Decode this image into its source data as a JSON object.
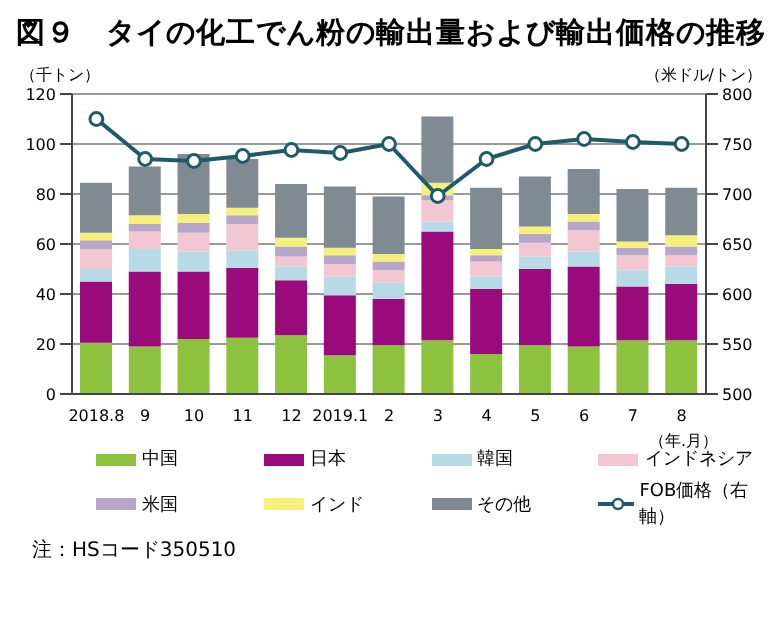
{
  "chart_data": {
    "type": "bar",
    "stacked": true,
    "title": "図９　タイの化工でん粉の輸出量および輸出価格の推移",
    "ylabel": "（千トン）",
    "y2label": "（米ドル/トン）",
    "xlabel": "（年.月）",
    "categories": [
      "2018.8",
      "9",
      "10",
      "11",
      "12",
      "2019.1",
      "2",
      "3",
      "4",
      "5",
      "6",
      "7",
      "8"
    ],
    "series": [
      {
        "name": "中国",
        "color": "#8dc23f",
        "values": [
          20.5,
          19,
          22,
          22.5,
          23.5,
          15.5,
          19.5,
          21.5,
          16,
          19.5,
          19,
          21.5,
          21.5
        ]
      },
      {
        "name": "日本",
        "color": "#9b0a7d",
        "values": [
          24.5,
          30,
          27,
          28,
          22,
          24,
          18.5,
          43.5,
          26,
          30.5,
          32,
          21.5,
          22.5
        ]
      },
      {
        "name": "韓国",
        "color": "#b7dbe6",
        "values": [
          5,
          9,
          8,
          7,
          5.5,
          7.5,
          6.5,
          4,
          5,
          5,
          6,
          6.5,
          7
        ]
      },
      {
        "name": "インドネシア",
        "color": "#f2c7d1",
        "values": [
          8,
          7,
          7.5,
          10.5,
          4,
          5,
          5,
          8.5,
          6,
          5.5,
          8.5,
          6,
          4.5
        ]
      },
      {
        "name": "米国",
        "color": "#b6a6c9",
        "values": [
          3.5,
          3,
          4,
          3.5,
          4,
          3.5,
          3.5,
          2,
          2.5,
          3.5,
          3.5,
          3,
          3.5
        ]
      },
      {
        "name": "インド",
        "color": "#f5f07a",
        "values": [
          3,
          3.5,
          3.5,
          3,
          3.5,
          3,
          3,
          5,
          2.5,
          3,
          3,
          2.5,
          4.5
        ]
      },
      {
        "name": "その他",
        "color": "#7f8a93",
        "values": [
          20,
          19.5,
          24,
          19.5,
          21.5,
          24.5,
          23,
          26.5,
          24.5,
          20,
          18,
          21,
          19
        ]
      },
      {
        "name": "FOB価格（右軸）",
        "type": "line",
        "axis": "y2",
        "marker": "circle",
        "color": "#1f5a6b",
        "values": [
          775,
          735,
          733,
          738,
          744,
          741,
          750,
          698,
          735,
          750,
          755,
          752,
          750
        ]
      }
    ],
    "ylim": [
      0,
      120
    ],
    "yticks": [
      0,
      20,
      40,
      60,
      80,
      100,
      120
    ],
    "y2lim": [
      500,
      800
    ],
    "y2ticks": [
      500,
      550,
      600,
      650,
      700,
      750,
      800
    ],
    "grid": "y",
    "legend": "bottom",
    "annotations": [
      "注：HSコード350510"
    ]
  }
}
